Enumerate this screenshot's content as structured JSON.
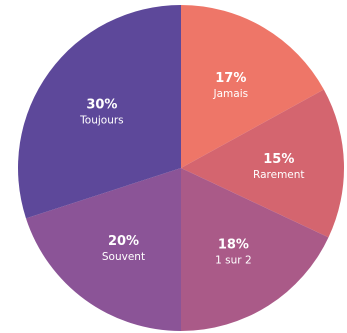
{
  "chart_data": {
    "type": "pie",
    "title": "",
    "categories": [
      "Jamais",
      "Rarement",
      "1 sur 2",
      "Souvent",
      "Toujours"
    ],
    "values": [
      17,
      15,
      18,
      20,
      30
    ],
    "value_labels": [
      "17%",
      "15%",
      "18%",
      "20%",
      "30%"
    ],
    "colors": [
      "#ee7668",
      "#d4656f",
      "#aa5a88",
      "#8b5497",
      "#5d489a"
    ],
    "start": "12 o'clock",
    "direction": "clockwise",
    "legend": "none",
    "labels_inside": true
  }
}
